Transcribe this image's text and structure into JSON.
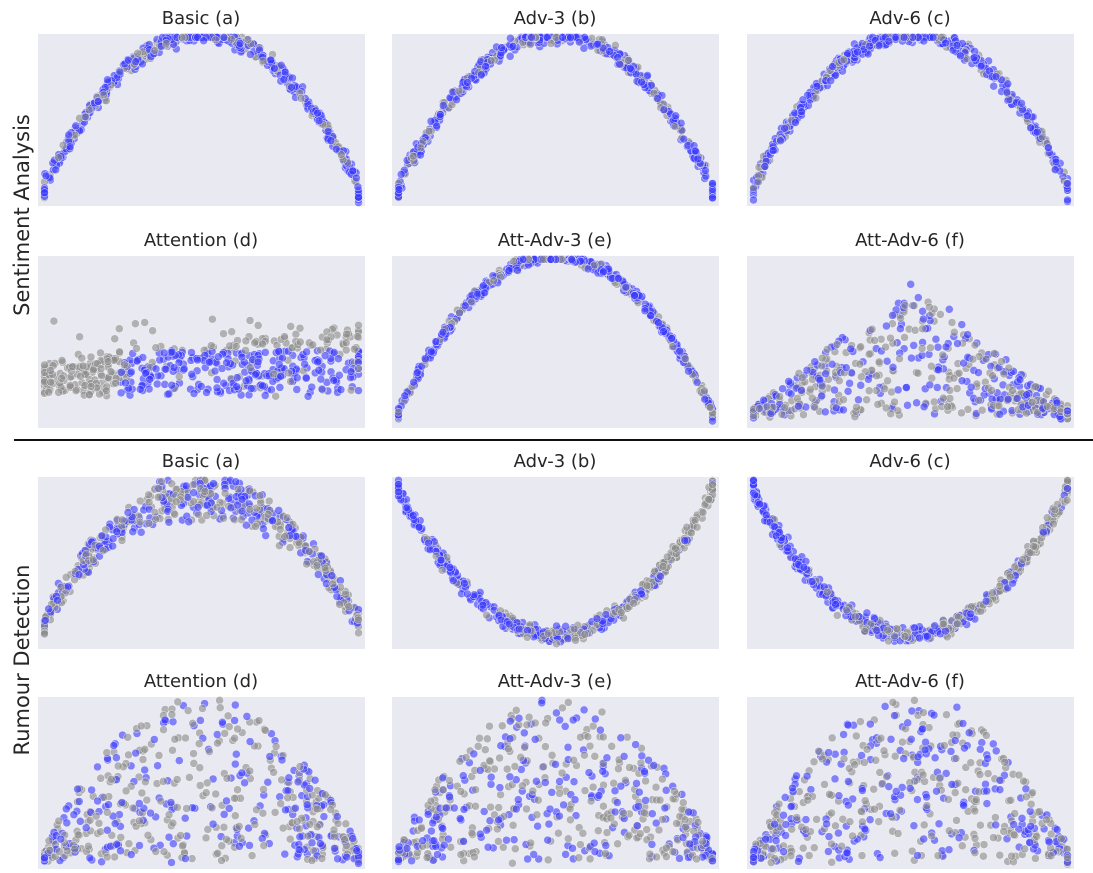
{
  "figure": {
    "groups": [
      {
        "label": "Sentiment Analysis",
        "panels": [
          {
            "title": "Basic (a)",
            "shape": "arch",
            "mix": "blue-dominant"
          },
          {
            "title": "Adv-3 (b)",
            "shape": "arch",
            "mix": "blue-dominant"
          },
          {
            "title": "Adv-6 (c)",
            "shape": "arch",
            "mix": "blue-dominant"
          },
          {
            "title": "Attention (d)",
            "shape": "flat-cloud",
            "mix": "blue-bottom-grey-left"
          },
          {
            "title": "Att-Adv-3 (e)",
            "shape": "arch-thin",
            "mix": "blue-dominant"
          },
          {
            "title": "Att-Adv-6 (f)",
            "shape": "wide-dome",
            "mix": "mixed"
          }
        ]
      },
      {
        "label": "Rumour Detection",
        "panels": [
          {
            "title": "Basic (a)",
            "shape": "arch-sparse",
            "mix": "mixed"
          },
          {
            "title": "Adv-3 (b)",
            "shape": "u-curve",
            "mix": "blue-left-grey-right"
          },
          {
            "title": "Adv-6 (c)",
            "shape": "u-curve",
            "mix": "blue-left-grey-right"
          },
          {
            "title": "Attention (d)",
            "shape": "dome",
            "mix": "mixed"
          },
          {
            "title": "Att-Adv-3 (e)",
            "shape": "dome",
            "mix": "mixed"
          },
          {
            "title": "Att-Adv-6 (f)",
            "shape": "dome",
            "mix": "mixed"
          }
        ]
      }
    ]
  },
  "chart_data": {
    "type": "scatter",
    "series": [
      {
        "color": "#3b3bff"
      },
      {
        "color": "#8c8c8c"
      }
    ],
    "grid": false,
    "background": "#e9e9f1",
    "ticks": "none"
  }
}
